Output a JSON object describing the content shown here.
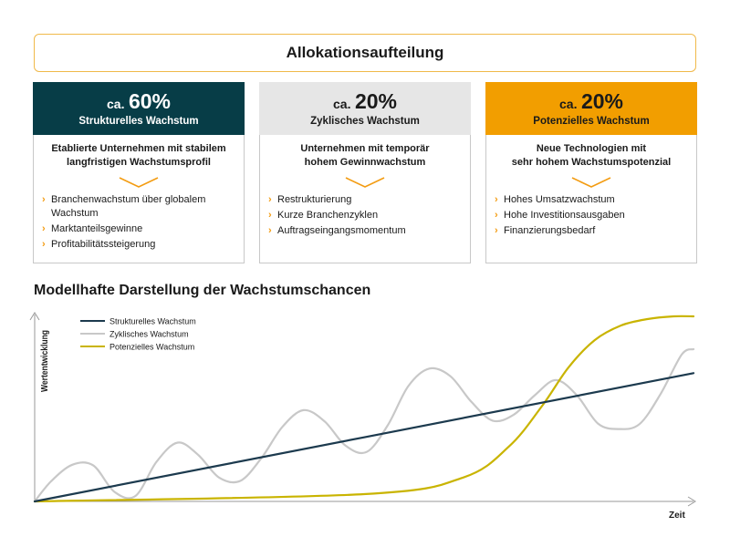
{
  "banner": {
    "title": "Allokationsaufteilung"
  },
  "columns": [
    {
      "prefix": "ca.",
      "percent": "60%",
      "heading": "Strukturelles Wachstum",
      "bg": "#073d47",
      "fg": "#ffffff",
      "desc_line1": "Etablierte Unternehmen mit stabilem",
      "desc_line2": "langfristigen Wachstumsprofil",
      "bullets": [
        "Branchenwachstum über globalem Wachstum",
        "Marktanteilsgewinne",
        "Profitabilitätssteigerung"
      ]
    },
    {
      "prefix": "ca.",
      "percent": "20%",
      "heading": "Zyklisches Wachstum",
      "bg": "#e6e6e6",
      "fg": "#1a1a1a",
      "desc_line1": "Unternehmen mit temporär",
      "desc_line2": "hohem Gewinnwachstum",
      "bullets": [
        "Restrukturierung",
        "Kurze Branchenzyklen",
        "Auftragseingangsmomentum"
      ]
    },
    {
      "prefix": "ca.",
      "percent": "20%",
      "heading": "Potenzielles Wachstum",
      "bg": "#f29e00",
      "fg": "#1a1a1a",
      "desc_line1": "Neue Technologien mit",
      "desc_line2": "sehr hohem Wachstumspotenzial",
      "bullets": [
        "Hohes Umsatzwachstum",
        "Hohe Investitionsausgaben",
        "Finanzierungsbedarf"
      ]
    }
  ],
  "accent_color": "#f39c12",
  "chart_data": {
    "type": "line",
    "title": "Modellhafte Darstellung der Wachstumschancen",
    "xlabel": "Zeit",
    "ylabel": "Wertentwicklung",
    "xlim": [
      0,
      100
    ],
    "ylim": [
      0,
      100
    ],
    "grid": false,
    "legend": "top-left",
    "series": [
      {
        "name": "Strukturelles Wachstum",
        "color": "#1c3a4e",
        "x": [
          0,
          100
        ],
        "y": [
          0,
          70
        ]
      },
      {
        "name": "Zyklisches Wachstum",
        "color": "#c8c8c8",
        "x": [
          0,
          2.5,
          5.7,
          8.9,
          12.1,
          15.3,
          18.5,
          21.7,
          24.8,
          28.0,
          31.2,
          34.4,
          37.6,
          40.8,
          44.0,
          47.2,
          50.4,
          53.6,
          56.7,
          59.9,
          63.1,
          66.3,
          69.5,
          72.7,
          75.9,
          79.1,
          82.3,
          85.5,
          88.6,
          91.8,
          95.0,
          98.2,
          100
        ],
        "y": [
          0,
          11.0,
          20.0,
          19.6,
          5.2,
          3.0,
          21.7,
          32.1,
          25.4,
          13.0,
          11.2,
          23.6,
          40.7,
          49.8,
          43.7,
          30.4,
          27.0,
          41.6,
          62.9,
          72.5,
          68.3,
          54.3,
          44.1,
          47.3,
          57.9,
          66.2,
          57.9,
          42.5,
          39.5,
          42.2,
          58.6,
          80.1,
          83.1
        ]
      },
      {
        "name": "Potenzielles Wachstum",
        "color": "#c9b400",
        "x": [
          0,
          50,
          65,
          72,
          77,
          81,
          85,
          89,
          93,
          97,
          100
        ],
        "y": [
          0,
          4,
          13,
          30,
          52,
          73,
          88,
          96,
          99.5,
          101,
          101
        ]
      }
    ]
  }
}
